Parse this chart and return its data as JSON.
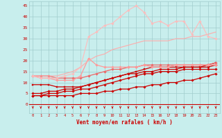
{
  "title": "",
  "xlabel": "Vent moyen/en rafales ( km/h )",
  "ylabel": "",
  "xlim": [
    -0.5,
    23.5
  ],
  "ylim": [
    -4,
    47
  ],
  "yticks": [
    0,
    5,
    10,
    15,
    20,
    25,
    30,
    35,
    40,
    45
  ],
  "xticks": [
    0,
    1,
    2,
    3,
    4,
    5,
    6,
    7,
    8,
    9,
    10,
    11,
    12,
    13,
    14,
    15,
    16,
    17,
    18,
    19,
    20,
    21,
    22,
    23
  ],
  "bg_color": "#c8eeed",
  "grid_color": "#a0cccc",
  "lines": [
    {
      "x": [
        0,
        1,
        2,
        3,
        4,
        5,
        6,
        7,
        8,
        9,
        10,
        11,
        12,
        13,
        14,
        15,
        16,
        17,
        18,
        19,
        20,
        21,
        22,
        23
      ],
      "y": [
        4,
        4,
        4,
        4,
        4,
        4,
        5,
        5,
        5,
        6,
        6,
        7,
        7,
        8,
        8,
        9,
        9,
        10,
        10,
        11,
        11,
        12,
        13,
        14
      ],
      "color": "#cc0000",
      "lw": 0.9,
      "marker": "D",
      "ms": 1.8,
      "alpha": 1.0
    },
    {
      "x": [
        0,
        1,
        2,
        3,
        4,
        5,
        6,
        7,
        8,
        9,
        10,
        11,
        12,
        13,
        14,
        15,
        16,
        17,
        18,
        19,
        20,
        21,
        22,
        23
      ],
      "y": [
        4,
        4,
        5,
        5,
        6,
        6,
        7,
        7,
        8,
        9,
        10,
        11,
        12,
        13,
        14,
        14,
        15,
        15,
        15,
        16,
        16,
        16,
        16,
        16
      ],
      "color": "#cc0000",
      "lw": 0.9,
      "marker": "D",
      "ms": 1.8,
      "alpha": 1.0
    },
    {
      "x": [
        0,
        1,
        2,
        3,
        4,
        5,
        6,
        7,
        8,
        9,
        10,
        11,
        12,
        13,
        14,
        15,
        16,
        17,
        18,
        19,
        20,
        21,
        22,
        23
      ],
      "y": [
        5,
        5,
        6,
        6,
        7,
        7,
        8,
        9,
        10,
        11,
        12,
        13,
        14,
        14,
        15,
        15,
        16,
        16,
        16,
        17,
        17,
        17,
        17,
        18
      ],
      "color": "#cc0000",
      "lw": 0.9,
      "marker": "D",
      "ms": 1.8,
      "alpha": 1.0
    },
    {
      "x": [
        0,
        1,
        2,
        3,
        4,
        5,
        6,
        7,
        8,
        9,
        10,
        11,
        12,
        13,
        14,
        15,
        16,
        17,
        18,
        19,
        20,
        21,
        22,
        23
      ],
      "y": [
        9,
        9,
        9,
        8,
        8,
        8,
        8,
        9,
        10,
        11,
        12,
        13,
        14,
        15,
        16,
        17,
        17,
        17,
        17,
        17,
        17,
        17,
        18,
        19
      ],
      "color": "#cc0000",
      "lw": 0.9,
      "marker": "s",
      "ms": 1.8,
      "alpha": 1.0
    },
    {
      "x": [
        0,
        1,
        2,
        3,
        4,
        5,
        6,
        7,
        8,
        9,
        10,
        11,
        12,
        13,
        14,
        15,
        16,
        17,
        18,
        19,
        20,
        21,
        22,
        23
      ],
      "y": [
        13,
        13,
        13,
        12,
        12,
        12,
        12,
        13,
        14,
        15,
        16,
        16,
        17,
        17,
        18,
        18,
        18,
        18,
        18,
        18,
        18,
        18,
        18,
        19
      ],
      "color": "#ee6666",
      "lw": 0.9,
      "marker": "D",
      "ms": 1.8,
      "alpha": 1.0
    },
    {
      "x": [
        0,
        1,
        2,
        3,
        4,
        5,
        6,
        7,
        8,
        9,
        10,
        11,
        12,
        13,
        14,
        15,
        16,
        17,
        18,
        19,
        20,
        21,
        22,
        23
      ],
      "y": [
        13,
        12,
        12,
        11,
        11,
        11,
        13,
        21,
        18,
        17,
        17,
        17,
        17,
        17,
        18,
        17,
        17,
        17,
        18,
        18,
        18,
        18,
        18,
        18
      ],
      "color": "#ff9999",
      "lw": 0.9,
      "marker": "D",
      "ms": 1.8,
      "alpha": 1.0
    },
    {
      "x": [
        0,
        1,
        2,
        3,
        4,
        5,
        6,
        7,
        8,
        9,
        10,
        11,
        12,
        13,
        14,
        15,
        16,
        17,
        18,
        19,
        20,
        21,
        22,
        23
      ],
      "y": [
        13,
        13,
        13,
        13,
        14,
        15,
        17,
        20,
        22,
        23,
        25,
        26,
        27,
        28,
        29,
        29,
        29,
        29,
        30,
        30,
        31,
        31,
        32,
        33
      ],
      "color": "#ffaaaa",
      "lw": 0.9,
      "marker": null,
      "ms": 0,
      "alpha": 0.9
    },
    {
      "x": [
        0,
        1,
        2,
        3,
        4,
        5,
        6,
        7,
        8,
        9,
        10,
        11,
        12,
        13,
        14,
        15,
        16,
        17,
        18,
        19,
        20,
        21,
        22,
        23
      ],
      "y": [
        13,
        12,
        12,
        12,
        13,
        14,
        17,
        31,
        33,
        36,
        37,
        40,
        43,
        45,
        42,
        37,
        38,
        36,
        38,
        38,
        32,
        38,
        31,
        30
      ],
      "color": "#ffbbbb",
      "lw": 0.9,
      "marker": "D",
      "ms": 1.8,
      "alpha": 0.9
    }
  ],
  "arrow_color": "#cc0000",
  "font_color": "#cc0000",
  "hline_color": "#cc0000",
  "hline_y": 0
}
